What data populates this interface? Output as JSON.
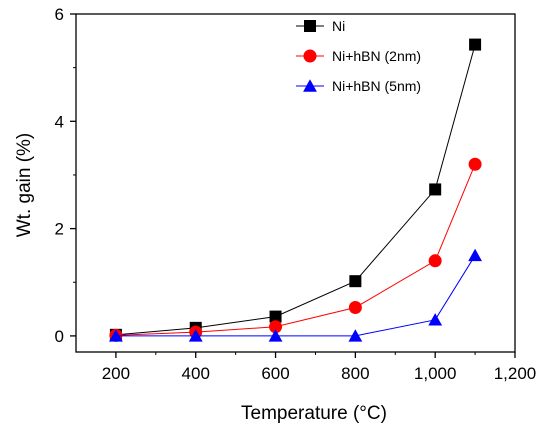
{
  "chart_data": {
    "type": "line",
    "xlabel": "Temperature (°C)",
    "ylabel": "Wt. gain (%)",
    "xlim": [
      100,
      1200
    ],
    "ylim": [
      -0.3,
      6
    ],
    "x_ticks": [
      200,
      400,
      600,
      800,
      1000,
      1200
    ],
    "x_tick_labels": [
      "200",
      "400",
      "600",
      "800",
      "1,000",
      "1,200"
    ],
    "y_ticks": [
      0,
      2,
      4,
      6
    ],
    "y_tick_labels": [
      "0",
      "2",
      "4",
      "6"
    ],
    "grid": false,
    "legend_position": "top-right",
    "x": [
      200,
      400,
      600,
      800,
      1000,
      1100
    ],
    "series": [
      {
        "name": "Ni",
        "values": [
          0.02,
          0.15,
          0.36,
          1.02,
          2.73,
          5.43
        ],
        "color": "#000000",
        "marker": "square"
      },
      {
        "name": "Ni+hBN (2nm)",
        "values": [
          0.01,
          0.07,
          0.17,
          0.53,
          1.4,
          3.2
        ],
        "color": "#ff0000",
        "marker": "circle"
      },
      {
        "name": "Ni+hBN (5nm)",
        "values": [
          0.0,
          0.0,
          0.0,
          0.0,
          0.3,
          1.5
        ],
        "color": "#0000ff",
        "marker": "triangle"
      }
    ]
  }
}
